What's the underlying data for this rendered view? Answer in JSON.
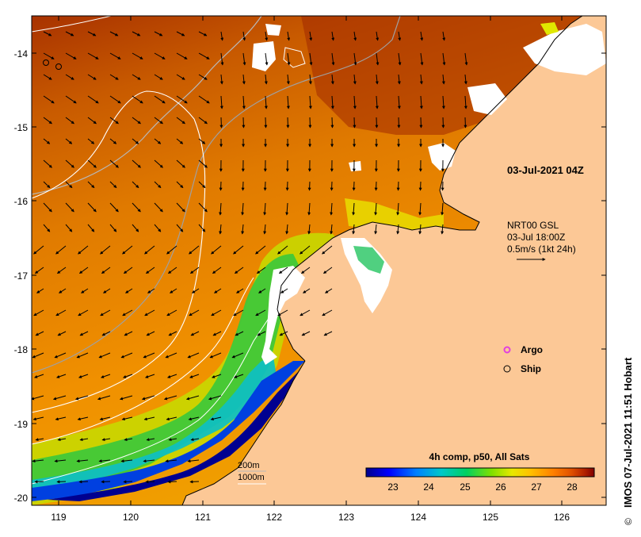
{
  "axes": {
    "lon_ticks": [
      "119",
      "120",
      "121",
      "122",
      "123",
      "124",
      "125",
      "126"
    ],
    "lat_ticks": [
      "-14",
      "-15",
      "-16",
      "-17",
      "-18",
      "-19",
      "-20"
    ]
  },
  "timestamp": "03-Jul-2021 04Z",
  "current_info": {
    "line1": "NRT00 GSL",
    "line2": "03-Jul 18:00Z",
    "line3": "0.5m/s (1kt 24h)"
  },
  "legend": {
    "argo_label": "Argo",
    "ship_label": "Ship",
    "argo_color": "#e040e0"
  },
  "bathymetry_legend": {
    "line1": "200m",
    "line2": "1000m"
  },
  "colorbar": {
    "title": "4h comp, p50, All Sats",
    "ticks": [
      "23",
      "24",
      "25",
      "26",
      "27",
      "28"
    ],
    "colors": [
      "#00008c",
      "#0000ff",
      "#0080ff",
      "#00c8c8",
      "#00d060",
      "#80e000",
      "#e8e800",
      "#ffc000",
      "#ff8000",
      "#e05000",
      "#b02000",
      "#800000"
    ]
  },
  "credit": "IMOS 07-Jul-2021 11:51 Hobart",
  "land_color": "#fcc896"
}
